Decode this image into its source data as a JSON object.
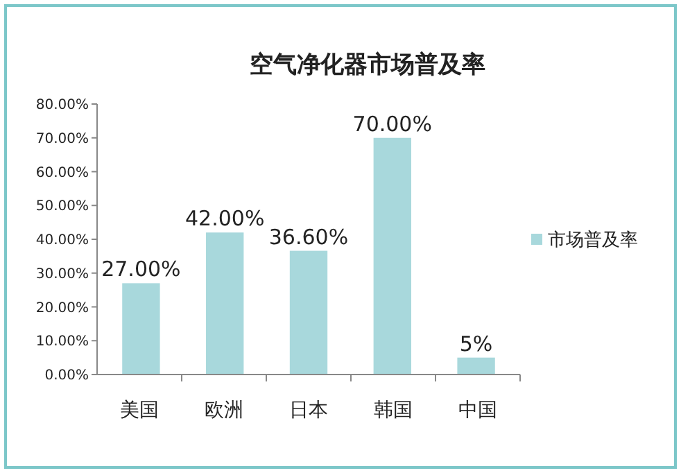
{
  "chart_data": {
    "type": "bar",
    "title": "空气净化器市场普及率",
    "categories": [
      "美国",
      "欧洲",
      "日本",
      "韩国",
      "中国"
    ],
    "series": [
      {
        "name": "市场普及率",
        "color": "#a8d8dc",
        "values": [
          27,
          42,
          36.6,
          70,
          5
        ],
        "value_labels": [
          "27.00%",
          "42.00%",
          "36.60%",
          "70.00%",
          "5%"
        ]
      }
    ],
    "ylim": [
      0,
      80
    ],
    "yticks": [
      {
        "value": 0,
        "label": "0.00%"
      },
      {
        "value": 10,
        "label": "10.00%"
      },
      {
        "value": 20,
        "label": "20.00%"
      },
      {
        "value": 30,
        "label": "30.00%"
      },
      {
        "value": 40,
        "label": "40.00%"
      },
      {
        "value": 50,
        "label": "50.00%"
      },
      {
        "value": 60,
        "label": "60.00%"
      },
      {
        "value": 70,
        "label": "70.00%"
      },
      {
        "value": 80,
        "label": "80.00%"
      }
    ],
    "legend": "right"
  }
}
